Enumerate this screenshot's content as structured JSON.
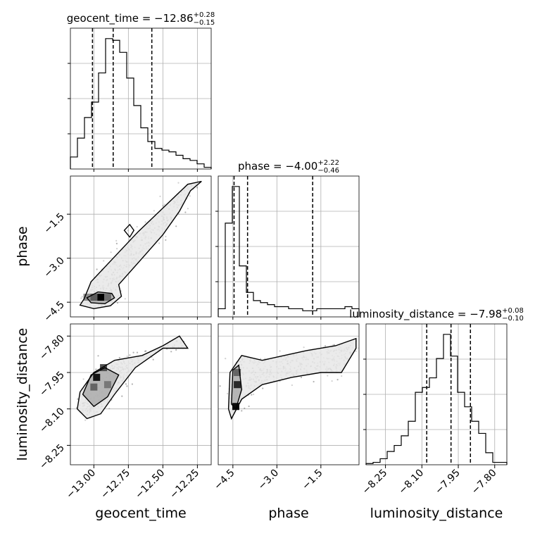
{
  "chart_data": {
    "type": "corner",
    "parameters": [
      "geocent_time",
      "phase",
      "luminosity_distance"
    ],
    "axis_labels": [
      "geocent_time",
      "phase",
      "luminosity_distance"
    ],
    "ranges": [
      [
        -13.17,
        -12.15
      ],
      [
        -5.0,
        -0.2
      ],
      [
        -8.33,
        -7.75
      ]
    ],
    "ticks": [
      {
        "values": [
          -13.0,
          -12.75,
          -12.5,
          -12.25
        ],
        "labels": [
          "−13.00",
          "−12.75",
          "−12.50",
          "−12.25"
        ]
      },
      {
        "values": [
          -4.5,
          -3.0,
          -1.5
        ],
        "labels": [
          "−4.5",
          "−3.0",
          "−1.5"
        ]
      },
      {
        "values": [
          -8.25,
          -8.1,
          -7.95,
          -7.8
        ],
        "labels": [
          "−8.25",
          "−8.10",
          "−7.95",
          "−7.80"
        ]
      }
    ],
    "grid": true,
    "titles": [
      {
        "prefix": "geocent_time = −12.86",
        "sup": "+0.28",
        "sub": "−0.15"
      },
      {
        "prefix": "phase = −4.00",
        "sup": "+2.22",
        "sub": "−0.46"
      },
      {
        "prefix": "luminosity_distance = −7.98",
        "sup": "+0.08",
        "sub": "−0.10"
      }
    ],
    "quantiles": [
      [
        -13.01,
        -12.86,
        -12.58
      ],
      [
        -4.46,
        -4.0,
        -1.78
      ],
      [
        -8.08,
        -7.98,
        -7.9
      ]
    ],
    "histograms": [
      {
        "bins": 20,
        "counts": [
          0.7,
          1.8,
          3.0,
          3.9,
          5.6,
          7.6,
          7.5,
          6.8,
          5.3,
          3.7,
          2.4,
          1.6,
          1.2,
          1.1,
          1.0,
          0.8,
          0.6,
          0.5,
          0.3,
          0.1
        ]
      },
      {
        "bins": 20,
        "counts": [
          0.4,
          4.6,
          6.4,
          2.5,
          1.2,
          0.8,
          0.7,
          0.6,
          0.5,
          0.5,
          0.4,
          0.4,
          0.3,
          0.3,
          0.4,
          0.4,
          0.4,
          0.4,
          0.5,
          0.4
        ]
      },
      {
        "bins": 20,
        "counts": [
          0.05,
          0.1,
          0.25,
          0.55,
          0.8,
          1.2,
          1.8,
          3.0,
          3.2,
          3.6,
          4.4,
          5.4,
          4.5,
          3.0,
          2.4,
          1.8,
          1.3,
          0.5,
          0.1,
          0.1
        ]
      }
    ],
    "pairs": [
      {
        "x_param": "geocent_time",
        "y_param": "phase",
        "mode": [
          -12.95,
          -4.33
        ],
        "contours": [
          [
            [
              -13.07,
              -4.38
            ],
            [
              -13.1,
              -4.6
            ],
            [
              -13.0,
              -4.72
            ],
            [
              -12.88,
              -4.62
            ],
            [
              -12.8,
              -4.3
            ],
            [
              -12.82,
              -3.9
            ],
            [
              -12.65,
              -3.0
            ],
            [
              -12.5,
              -2.2
            ],
            [
              -12.38,
              -1.4
            ],
            [
              -12.3,
              -0.7
            ],
            [
              -12.22,
              -0.38
            ],
            [
              -12.32,
              -0.48
            ],
            [
              -12.48,
              -1.2
            ],
            [
              -12.68,
              -2.1
            ],
            [
              -12.88,
              -3.1
            ],
            [
              -13.02,
              -3.8
            ],
            [
              -13.07,
              -4.38
            ]
          ],
          [
            [
              -13.05,
              -4.35
            ],
            [
              -13.02,
              -4.52
            ],
            [
              -12.92,
              -4.55
            ],
            [
              -12.85,
              -4.35
            ],
            [
              -12.87,
              -4.2
            ],
            [
              -12.97,
              -4.15
            ],
            [
              -13.05,
              -4.35
            ]
          ],
          [
            [
              -12.78,
              -2.05
            ],
            [
              -12.74,
              -2.28
            ],
            [
              -12.71,
              -2.05
            ],
            [
              -12.74,
              -1.85
            ],
            [
              -12.78,
              -2.05
            ]
          ]
        ],
        "dense_cells": [
          [
            -12.95,
            -4.33,
            1.0
          ],
          [
            -13.0,
            -4.33,
            0.55
          ],
          [
            -12.9,
            -4.33,
            0.45
          ],
          [
            -13.05,
            -4.33,
            0.3
          ]
        ]
      },
      {
        "x_param": "geocent_time",
        "y_param": "luminosity_distance",
        "mode": [
          -12.98,
          -7.97
        ],
        "contours": [
          [
            [
              -13.12,
              -8.1
            ],
            [
              -13.05,
              -8.14
            ],
            [
              -12.95,
              -8.12
            ],
            [
              -12.85,
              -8.04
            ],
            [
              -12.7,
              -7.93
            ],
            [
              -12.5,
              -7.85
            ],
            [
              -12.32,
              -7.85
            ],
            [
              -12.38,
              -7.8
            ],
            [
              -12.5,
              -7.84
            ],
            [
              -12.65,
              -7.88
            ],
            [
              -12.85,
              -7.9
            ],
            [
              -13.0,
              -7.95
            ],
            [
              -13.1,
              -8.03
            ],
            [
              -13.12,
              -8.1
            ]
          ],
          [
            [
              -13.08,
              -8.04
            ],
            [
              -13.0,
              -8.09
            ],
            [
              -12.9,
              -8.05
            ],
            [
              -12.82,
              -7.96
            ],
            [
              -12.92,
              -7.93
            ],
            [
              -13.02,
              -7.96
            ],
            [
              -13.08,
              -8.04
            ]
          ]
        ],
        "dense_cells": [
          [
            -12.98,
            -7.97,
            0.9
          ],
          [
            -12.93,
            -7.93,
            0.6
          ],
          [
            -13.0,
            -8.01,
            0.5
          ],
          [
            -12.9,
            -8.0,
            0.4
          ]
        ]
      },
      {
        "x_param": "phase",
        "y_param": "luminosity_distance",
        "mode": [
          -4.35,
          -8.02
        ],
        "contours": [
          [
            [
              -4.65,
              -8.1
            ],
            [
              -4.55,
              -8.14
            ],
            [
              -4.2,
              -8.06
            ],
            [
              -3.5,
              -8.0
            ],
            [
              -2.5,
              -7.97
            ],
            [
              -1.5,
              -7.95
            ],
            [
              -0.8,
              -7.95
            ],
            [
              -0.3,
              -7.85
            ],
            [
              -0.3,
              -7.81
            ],
            [
              -1.0,
              -7.84
            ],
            [
              -2.0,
              -7.86
            ],
            [
              -3.5,
              -7.9
            ],
            [
              -4.2,
              -7.88
            ],
            [
              -4.6,
              -7.95
            ],
            [
              -4.65,
              -8.1
            ]
          ],
          [
            [
              -4.55,
              -8.08
            ],
            [
              -4.4,
              -8.1
            ],
            [
              -4.2,
              -8.02
            ],
            [
              -4.3,
              -7.92
            ],
            [
              -4.5,
              -7.94
            ],
            [
              -4.55,
              -8.08
            ]
          ]
        ],
        "dense_cells": [
          [
            -4.35,
            -8.0,
            0.8
          ],
          [
            -4.4,
            -8.09,
            0.95
          ],
          [
            -4.35,
            -7.95,
            0.5
          ]
        ]
      }
    ]
  }
}
